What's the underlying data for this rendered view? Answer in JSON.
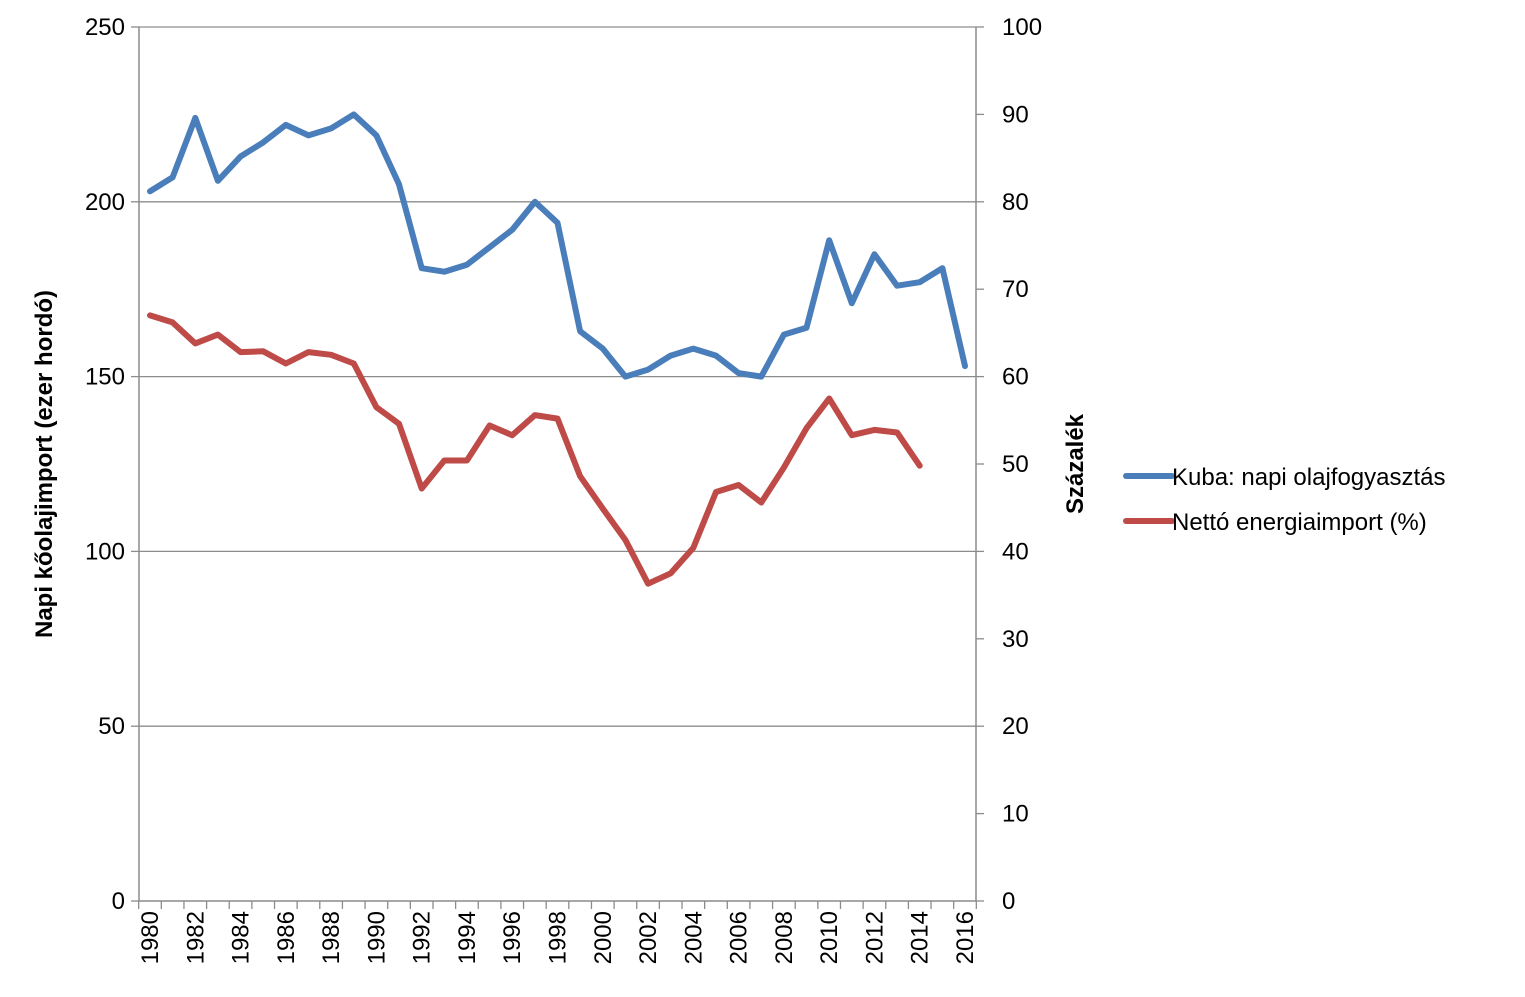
{
  "chart_data": {
    "type": "line",
    "title": "",
    "xlabel": "",
    "ylabel": "Napi kőolajimport (ezer hordó)",
    "ylabel_right": "Százalék",
    "ylim": [
      0,
      250
    ],
    "ylim_right": [
      0,
      100
    ],
    "yticks": [
      "0",
      "50",
      "100",
      "150",
      "200",
      "250"
    ],
    "yticks_right": [
      "0",
      "10",
      "20",
      "30",
      "40",
      "50",
      "60",
      "70",
      "80",
      "90",
      "100"
    ],
    "x_tick_labels": [
      "1980",
      "1982",
      "1984",
      "1986",
      "1988",
      "1990",
      "1992",
      "1994",
      "1996",
      "1998",
      "2000",
      "2002",
      "2004",
      "2006",
      "2008",
      "2010",
      "2012",
      "2014",
      "2016"
    ],
    "grid": true,
    "legend_position": "right",
    "x": [
      1980,
      1981,
      1982,
      1983,
      1984,
      1985,
      1986,
      1987,
      1988,
      1989,
      1990,
      1991,
      1992,
      1993,
      1994,
      1995,
      1996,
      1997,
      1998,
      1999,
      2000,
      2001,
      2002,
      2003,
      2004,
      2005,
      2006,
      2007,
      2008,
      2009,
      2010,
      2011,
      2012,
      2013,
      2014,
      2015,
      2016
    ],
    "series": [
      {
        "name": "Kuba: napi olajfogyasztás",
        "axis": "left",
        "color": "#4a7ebb",
        "values": [
          203,
          207,
          224,
          206,
          213,
          217,
          222,
          219,
          221,
          225,
          219,
          205,
          181,
          180,
          182,
          187,
          192,
          200,
          194,
          163,
          158,
          150,
          152,
          156,
          158,
          156,
          151,
          150,
          162,
          164,
          189,
          171,
          185,
          176,
          177,
          181,
          153
        ]
      },
      {
        "name": "Nettó energiaimport (%)",
        "axis": "right",
        "color": "#be4b48",
        "values": [
          67,
          66.2,
          63.8,
          64.8,
          62.8,
          62.9,
          61.5,
          62.8,
          62.5,
          61.5,
          56.5,
          54.6,
          47.2,
          50.4,
          50.4,
          54.4,
          53.3,
          55.6,
          55.2,
          48.6,
          44.9,
          41.3,
          36.3,
          37.5,
          40.4,
          46.8,
          47.6,
          45.6,
          49.6,
          54.1,
          57.5,
          53.3,
          53.9,
          53.6,
          49.8,
          null,
          null
        ]
      }
    ]
  }
}
